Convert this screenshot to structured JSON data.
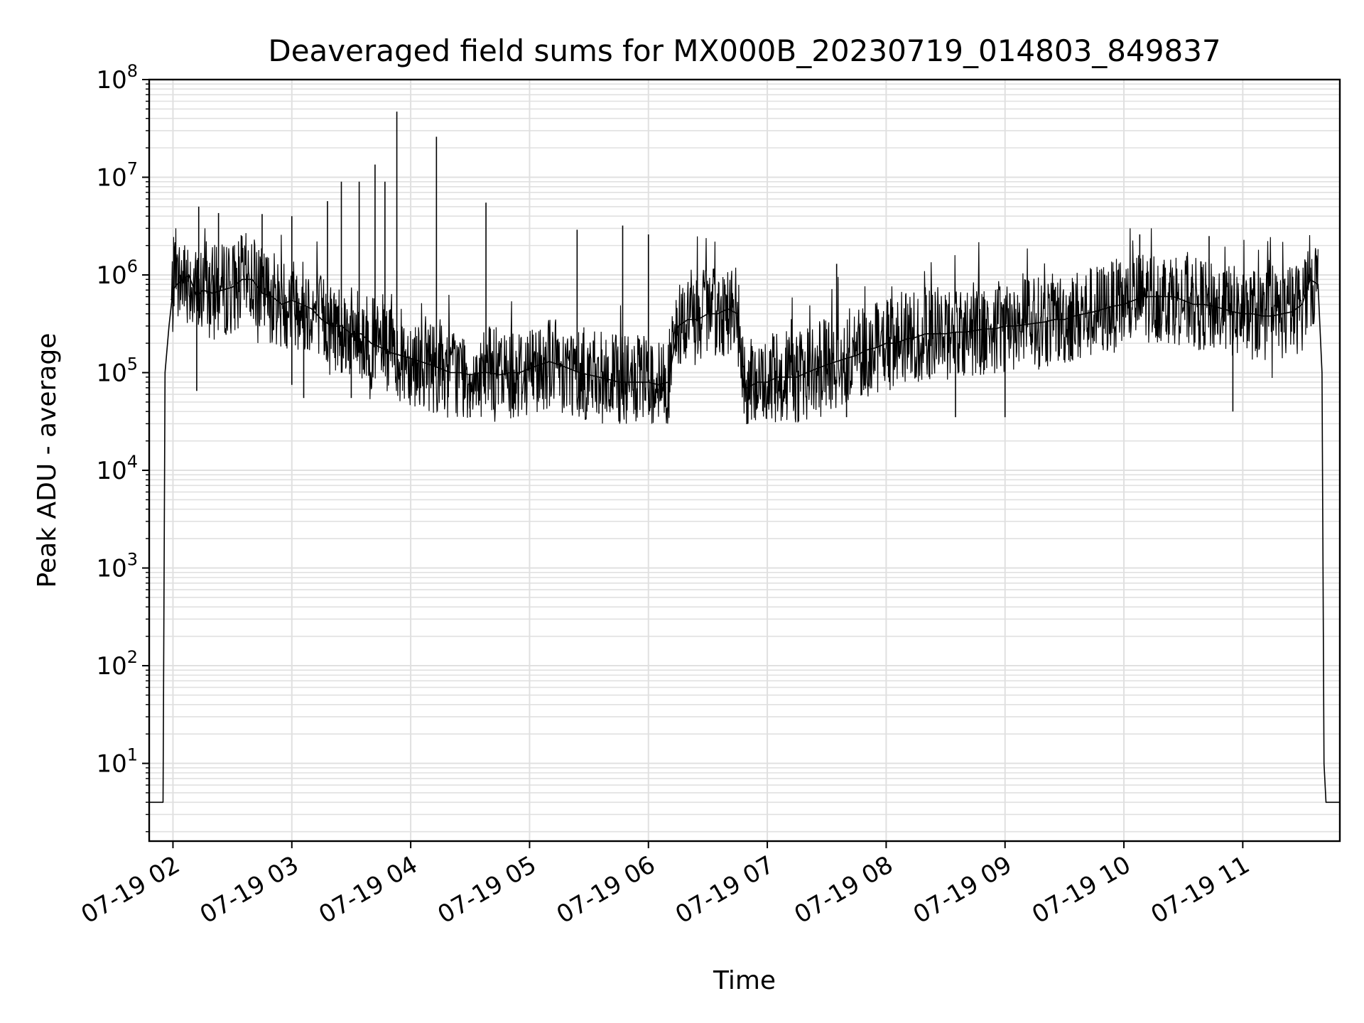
{
  "chart_data": {
    "type": "line",
    "title": "Deaveraged field sums for MX000B_20230719_014803_849837",
    "xlabel": "Time",
    "ylabel": "Peak ADU - average",
    "yscale": "log",
    "ylim": [
      1.6,
      100000000
    ],
    "xlim": [
      "2023-07-19T01:48",
      "2023-07-19T11:49"
    ],
    "grid": true,
    "line_color": "#000000",
    "grid_color": "#e0e0e0",
    "x_ticks": [
      {
        "value": "2023-07-19T02:00",
        "label": "07-19 02"
      },
      {
        "value": "2023-07-19T03:00",
        "label": "07-19 03"
      },
      {
        "value": "2023-07-19T04:00",
        "label": "07-19 04"
      },
      {
        "value": "2023-07-19T05:00",
        "label": "07-19 05"
      },
      {
        "value": "2023-07-19T06:00",
        "label": "07-19 06"
      },
      {
        "value": "2023-07-19T07:00",
        "label": "07-19 07"
      },
      {
        "value": "2023-07-19T08:00",
        "label": "07-19 08"
      },
      {
        "value": "2023-07-19T09:00",
        "label": "07-19 09"
      },
      {
        "value": "2023-07-19T10:00",
        "label": "07-19 10"
      },
      {
        "value": "2023-07-19T11:00",
        "label": "07-19 11"
      }
    ],
    "y_ticks": [
      {
        "value": 10,
        "base": "10",
        "exp": "1"
      },
      {
        "value": 100,
        "base": "10",
        "exp": "2"
      },
      {
        "value": 1000,
        "base": "10",
        "exp": "3"
      },
      {
        "value": 10000,
        "base": "10",
        "exp": "4"
      },
      {
        "value": 100000,
        "base": "10",
        "exp": "5"
      },
      {
        "value": 1000000,
        "base": "10",
        "exp": "6"
      },
      {
        "value": 10000000,
        "base": "10",
        "exp": "7"
      },
      {
        "value": 100000000,
        "base": "10",
        "exp": "8"
      }
    ],
    "series": [
      {
        "x": [
          "2023-07-19T01:48",
          "2023-07-19T01:55",
          "2023-07-19T01:56",
          "2023-07-19T01:58",
          "2023-07-19T02:00",
          "2023-07-19T02:02",
          "2023-07-19T02:05",
          "2023-07-19T02:08",
          "2023-07-19T02:12",
          "2023-07-19T02:15",
          "2023-07-19T02:20",
          "2023-07-19T02:25",
          "2023-07-19T02:30",
          "2023-07-19T02:35",
          "2023-07-19T02:40",
          "2023-07-19T02:45",
          "2023-07-19T02:50",
          "2023-07-19T02:55",
          "2023-07-19T03:00",
          "2023-07-19T03:05",
          "2023-07-19T03:10",
          "2023-07-19T03:15",
          "2023-07-19T03:20",
          "2023-07-19T03:25",
          "2023-07-19T03:30",
          "2023-07-19T03:35",
          "2023-07-19T03:40",
          "2023-07-19T03:45",
          "2023-07-19T03:50",
          "2023-07-19T03:55",
          "2023-07-19T04:00",
          "2023-07-19T04:05",
          "2023-07-19T04:10",
          "2023-07-19T04:15",
          "2023-07-19T04:20",
          "2023-07-19T04:25",
          "2023-07-19T04:30",
          "2023-07-19T04:35",
          "2023-07-19T04:40",
          "2023-07-19T04:45",
          "2023-07-19T04:50",
          "2023-07-19T04:55",
          "2023-07-19T05:00",
          "2023-07-19T05:05",
          "2023-07-19T05:10",
          "2023-07-19T05:15",
          "2023-07-19T05:20",
          "2023-07-19T05:25",
          "2023-07-19T05:30",
          "2023-07-19T05:35",
          "2023-07-19T05:40",
          "2023-07-19T05:45",
          "2023-07-19T05:50",
          "2023-07-19T05:55",
          "2023-07-19T06:00",
          "2023-07-19T06:05",
          "2023-07-19T06:10",
          "2023-07-19T06:15",
          "2023-07-19T06:20",
          "2023-07-19T06:25",
          "2023-07-19T06:30",
          "2023-07-19T06:35",
          "2023-07-19T06:40",
          "2023-07-19T06:45",
          "2023-07-19T06:48",
          "2023-07-19T06:50",
          "2023-07-19T06:55",
          "2023-07-19T07:00",
          "2023-07-19T07:05",
          "2023-07-19T07:10",
          "2023-07-19T07:15",
          "2023-07-19T07:20",
          "2023-07-19T07:25",
          "2023-07-19T07:30",
          "2023-07-19T07:35",
          "2023-07-19T07:40",
          "2023-07-19T07:45",
          "2023-07-19T07:50",
          "2023-07-19T07:55",
          "2023-07-19T08:00",
          "2023-07-19T08:05",
          "2023-07-19T08:10",
          "2023-07-19T08:15",
          "2023-07-19T08:20",
          "2023-07-19T08:25",
          "2023-07-19T08:30",
          "2023-07-19T08:35",
          "2023-07-19T08:40",
          "2023-07-19T08:45",
          "2023-07-19T08:50",
          "2023-07-19T08:55",
          "2023-07-19T09:00",
          "2023-07-19T09:05",
          "2023-07-19T09:10",
          "2023-07-19T09:15",
          "2023-07-19T09:20",
          "2023-07-19T09:25",
          "2023-07-19T09:30",
          "2023-07-19T09:35",
          "2023-07-19T09:40",
          "2023-07-19T09:45",
          "2023-07-19T09:50",
          "2023-07-19T09:55",
          "2023-07-19T10:00",
          "2023-07-19T10:05",
          "2023-07-19T10:10",
          "2023-07-19T10:15",
          "2023-07-19T10:20",
          "2023-07-19T10:25",
          "2023-07-19T10:30",
          "2023-07-19T10:35",
          "2023-07-19T10:40",
          "2023-07-19T10:45",
          "2023-07-19T10:50",
          "2023-07-19T10:55",
          "2023-07-19T11:00",
          "2023-07-19T11:05",
          "2023-07-19T11:10",
          "2023-07-19T11:15",
          "2023-07-19T11:20",
          "2023-07-19T11:25",
          "2023-07-19T11:30",
          "2023-07-19T11:34",
          "2023-07-19T11:38",
          "2023-07-19T11:40",
          "2023-07-19T11:41",
          "2023-07-19T11:42",
          "2023-07-19T11:49"
        ],
        "y": [
          4,
          4,
          100000,
          300000,
          700000,
          800000,
          900000,
          1000000,
          600000,
          700000,
          650000,
          700000,
          750000,
          900000,
          900000,
          650000,
          600000,
          500000,
          550000,
          500000,
          450000,
          350000,
          300000,
          300000,
          250000,
          250000,
          200000,
          180000,
          160000,
          150000,
          140000,
          130000,
          120000,
          110000,
          100000,
          100000,
          95000,
          100000,
          100000,
          95000,
          100000,
          100000,
          110000,
          120000,
          130000,
          120000,
          110000,
          100000,
          95000,
          90000,
          85000,
          80000,
          80000,
          80000,
          80000,
          75000,
          80000,
          300000,
          350000,
          350000,
          400000,
          400000,
          450000,
          400000,
          70000,
          70000,
          80000,
          80000,
          90000,
          90000,
          90000,
          100000,
          110000,
          120000,
          130000,
          140000,
          150000,
          170000,
          180000,
          200000,
          200000,
          220000,
          230000,
          250000,
          250000,
          250000,
          260000,
          260000,
          270000,
          280000,
          280000,
          300000,
          300000,
          310000,
          320000,
          330000,
          350000,
          350000,
          380000,
          400000,
          420000,
          450000,
          480000,
          500000,
          550000,
          600000,
          600000,
          600000,
          600000,
          550000,
          500000,
          500000,
          480000,
          450000,
          420000,
          400000,
          400000,
          380000,
          380000,
          400000,
          420000,
          500000,
          900000,
          800000,
          100000,
          10,
          4,
          4
        ]
      }
    ],
    "spikes": [
      {
        "x": "2023-07-19T02:13",
        "y": 5000000
      },
      {
        "x": "2023-07-19T02:23",
        "y": 4300000
      },
      {
        "x": "2023-07-19T02:45",
        "y": 4200000
      },
      {
        "x": "2023-07-19T03:00",
        "y": 4000000
      },
      {
        "x": "2023-07-19T03:18",
        "y": 5700000
      },
      {
        "x": "2023-07-19T03:25",
        "y": 9000000
      },
      {
        "x": "2023-07-19T03:34",
        "y": 9000000
      },
      {
        "x": "2023-07-19T03:42",
        "y": 13500000
      },
      {
        "x": "2023-07-19T03:47",
        "y": 9000000
      },
      {
        "x": "2023-07-19T03:53",
        "y": 47000000
      },
      {
        "x": "2023-07-19T04:13",
        "y": 26000000
      },
      {
        "x": "2023-07-19T04:38",
        "y": 5500000
      },
      {
        "x": "2023-07-19T05:24",
        "y": 2900000
      },
      {
        "x": "2023-07-19T05:47",
        "y": 3200000
      },
      {
        "x": "2023-07-19T06:00",
        "y": 2600000
      },
      {
        "x": "2023-07-19T07:35",
        "y": 1300000
      },
      {
        "x": "2023-07-19T10:08",
        "y": 2600000
      },
      {
        "x": "2023-07-19T10:43",
        "y": 2500000
      }
    ],
    "dips": [
      {
        "x": "2023-07-19T02:12",
        "y": 65000
      },
      {
        "x": "2023-07-19T03:00",
        "y": 75000
      },
      {
        "x": "2023-07-19T03:06",
        "y": 55000
      },
      {
        "x": "2023-07-19T03:30",
        "y": 55000
      },
      {
        "x": "2023-07-19T04:30",
        "y": 35000
      },
      {
        "x": "2023-07-19T05:35",
        "y": 38000
      },
      {
        "x": "2023-07-19T07:40",
        "y": 35000
      },
      {
        "x": "2023-07-19T08:35",
        "y": 35000
      },
      {
        "x": "2023-07-19T09:00",
        "y": 35000
      },
      {
        "x": "2023-07-19T10:55",
        "y": 40000
      }
    ]
  }
}
